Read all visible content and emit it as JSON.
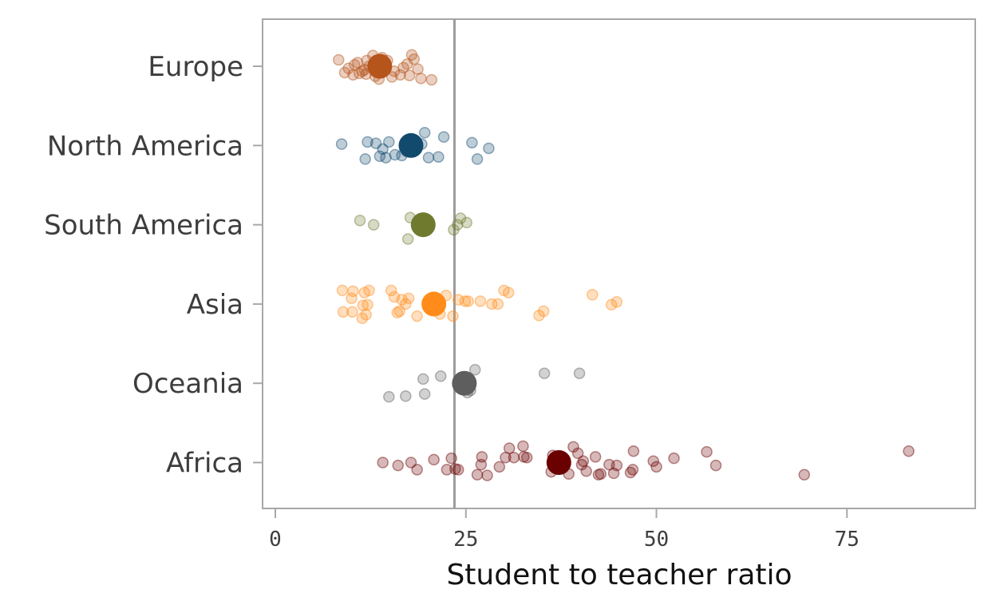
{
  "chart_data": {
    "type": "scatter",
    "title": "",
    "xlabel": "Student to teacher ratio",
    "ylabel": "",
    "xlim": [
      -5,
      92
    ],
    "xticks": [
      0,
      25,
      50,
      75
    ],
    "grid": false,
    "reference_line": {
      "value": 23.5,
      "color": "#9b9b9b"
    },
    "categories": [
      "Europe",
      "North America",
      "South America",
      "Asia",
      "Oceania",
      "Africa"
    ],
    "series": [
      {
        "category": "Europe",
        "color": "#b5541b",
        "mean": 13.7,
        "points": [
          [
            8.3,
            -0.09
          ],
          [
            9.1,
            0.09
          ],
          [
            9.6,
            0.03
          ],
          [
            10.2,
            0.12
          ],
          [
            10.4,
            -0.02
          ],
          [
            10.8,
            -0.05
          ],
          [
            11.0,
            0.1
          ],
          [
            11.4,
            0.07
          ],
          [
            11.7,
            0.05
          ],
          [
            11.9,
            0.11
          ],
          [
            12.0,
            -0.08
          ],
          [
            12.3,
            0.0
          ],
          [
            12.8,
            -0.15
          ],
          [
            13.1,
            0.14
          ],
          [
            13.4,
            -0.05
          ],
          [
            13.6,
            0.18
          ],
          [
            14.0,
            -0.12
          ],
          [
            14.2,
            0.03
          ],
          [
            14.7,
            -0.08
          ],
          [
            15.3,
            0.15
          ],
          [
            15.6,
            0.07
          ],
          [
            16.4,
            0.12
          ],
          [
            16.8,
            0.02
          ],
          [
            17.3,
            -0.03
          ],
          [
            17.6,
            0.13
          ],
          [
            17.9,
            -0.16
          ],
          [
            18.2,
            -0.1
          ],
          [
            18.7,
            0.04
          ],
          [
            19.1,
            0.17
          ],
          [
            20.5,
            0.19
          ]
        ]
      },
      {
        "category": "North America",
        "color": "#124a6e",
        "mean": 17.8,
        "points": [
          [
            8.7,
            -0.02
          ],
          [
            11.8,
            0.19
          ],
          [
            12.1,
            -0.05
          ],
          [
            13.2,
            -0.03
          ],
          [
            13.7,
            0.15
          ],
          [
            14.1,
            0.05
          ],
          [
            14.5,
            0.17
          ],
          [
            14.9,
            -0.05
          ],
          [
            15.7,
            0.13
          ],
          [
            16.6,
            0.14
          ],
          [
            17.2,
            0.08
          ],
          [
            19.2,
            -0.02
          ],
          [
            19.6,
            -0.18
          ],
          [
            20.1,
            0.17
          ],
          [
            21.4,
            0.16
          ],
          [
            22.1,
            -0.12
          ],
          [
            25.8,
            -0.04
          ],
          [
            26.5,
            0.19
          ],
          [
            28.0,
            0.04
          ]
        ]
      },
      {
        "category": "South America",
        "color": "#6f7a2e",
        "mean": 19.4,
        "points": [
          [
            11.1,
            -0.06
          ],
          [
            12.9,
            0.0
          ],
          [
            17.4,
            0.2
          ],
          [
            17.7,
            -0.1
          ],
          [
            23.4,
            0.07
          ],
          [
            23.9,
            0.0
          ],
          [
            24.3,
            -0.09
          ],
          [
            25.1,
            -0.03
          ]
        ]
      },
      {
        "category": "Asia",
        "color": "#ff8c1a",
        "mean": 20.8,
        "points": [
          [
            8.8,
            -0.19
          ],
          [
            8.9,
            0.11
          ],
          [
            10.0,
            -0.08
          ],
          [
            10.1,
            0.11
          ],
          [
            10.2,
            -0.18
          ],
          [
            11.4,
            0.2
          ],
          [
            11.5,
            0.02
          ],
          [
            11.7,
            -0.16
          ],
          [
            11.9,
            0.15
          ],
          [
            12.1,
            0.01
          ],
          [
            12.3,
            -0.19
          ],
          [
            15.2,
            -0.19
          ],
          [
            15.6,
            -0.1
          ],
          [
            16.0,
            0.12
          ],
          [
            16.3,
            0.1
          ],
          [
            16.6,
            -0.06
          ],
          [
            17.1,
            0.0
          ],
          [
            17.5,
            -0.08
          ],
          [
            18.6,
            0.17
          ],
          [
            20.3,
            -0.05
          ],
          [
            21.6,
            0.14
          ],
          [
            22.4,
            -0.12
          ],
          [
            23.3,
            0.17
          ],
          [
            24.0,
            -0.06
          ],
          [
            24.9,
            -0.04
          ],
          [
            25.3,
            -0.04
          ],
          [
            26.9,
            -0.04
          ],
          [
            28.4,
            0.0
          ],
          [
            29.2,
            0.0
          ],
          [
            30.0,
            -0.19
          ],
          [
            30.6,
            -0.16
          ],
          [
            34.6,
            0.16
          ],
          [
            35.2,
            0.1
          ],
          [
            41.6,
            -0.13
          ],
          [
            44.1,
            0.01
          ],
          [
            44.8,
            -0.03
          ]
        ]
      },
      {
        "category": "Oceania",
        "color": "#5e5e5e",
        "mean": 24.8,
        "points": [
          [
            14.9,
            0.19
          ],
          [
            17.1,
            0.18
          ],
          [
            19.4,
            -0.06
          ],
          [
            19.6,
            0.15
          ],
          [
            21.7,
            -0.1
          ],
          [
            25.2,
            0.13
          ],
          [
            25.6,
            0.1
          ],
          [
            26.2,
            -0.19
          ],
          [
            35.3,
            -0.14
          ],
          [
            39.9,
            -0.14
          ]
        ]
      },
      {
        "category": "Africa",
        "color": "#6b0000",
        "mean": 37.2,
        "points": [
          [
            14.1,
            0.0
          ],
          [
            16.1,
            0.04
          ],
          [
            17.8,
            0.0
          ],
          [
            18.6,
            0.1
          ],
          [
            20.8,
            -0.04
          ],
          [
            22.5,
            0.1
          ],
          [
            23.1,
            -0.06
          ],
          [
            23.6,
            0.09
          ],
          [
            24.0,
            0.1
          ],
          [
            26.5,
            0.17
          ],
          [
            27.0,
            0.03
          ],
          [
            27.1,
            -0.08
          ],
          [
            27.8,
            0.18
          ],
          [
            29.4,
            0.06
          ],
          [
            30.2,
            -0.07
          ],
          [
            30.7,
            -0.2
          ],
          [
            31.3,
            -0.07
          ],
          [
            32.5,
            -0.23
          ],
          [
            32.6,
            -0.08
          ],
          [
            33.0,
            -0.07
          ],
          [
            36.2,
            0.13
          ],
          [
            36.4,
            -0.1
          ],
          [
            36.7,
            0.07
          ],
          [
            37.0,
            -0.07
          ],
          [
            38.5,
            0.16
          ],
          [
            39.1,
            -0.22
          ],
          [
            39.7,
            -0.13
          ],
          [
            40.2,
            0.03
          ],
          [
            40.4,
            -0.02
          ],
          [
            40.8,
            0.12
          ],
          [
            42.0,
            -0.08
          ],
          [
            42.4,
            0.17
          ],
          [
            42.7,
            0.16
          ],
          [
            43.8,
            0.03
          ],
          [
            44.4,
            0.15
          ],
          [
            44.8,
            0.04
          ],
          [
            46.6,
            0.14
          ],
          [
            46.9,
            0.1
          ],
          [
            47.0,
            -0.16
          ],
          [
            49.6,
            -0.02
          ],
          [
            50.0,
            0.06
          ],
          [
            52.3,
            -0.06
          ],
          [
            56.6,
            -0.15
          ],
          [
            57.8,
            0.04
          ],
          [
            69.4,
            0.17
          ],
          [
            83.1,
            -0.16
          ]
        ]
      }
    ]
  }
}
